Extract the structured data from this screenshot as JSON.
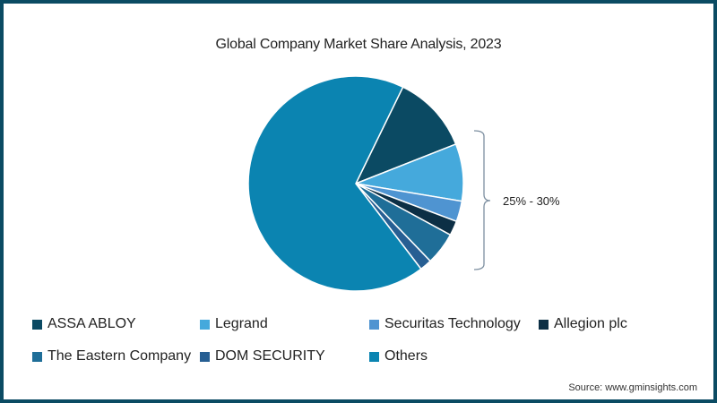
{
  "chart_data": {
    "type": "pie",
    "title": "Global Company Market Share Analysis, 2023",
    "categories": [
      "ASSA ABLOY",
      "Legrand",
      "Securitas Technology",
      "Allegion plc",
      "The Eastern Company",
      "DOM SECURITY",
      "Others"
    ],
    "values": [
      11.8,
      8.6,
      3.1,
      2.2,
      4.9,
      1.8,
      67.6
    ],
    "colors": [
      "#0b4a63",
      "#45a9dc",
      "#4f94d1",
      "#0c2f45",
      "#1f6e98",
      "#275f93",
      "#0b84b1"
    ],
    "annotation": "25% - 30%",
    "annotation_target": "combined share of top named companies",
    "legend_position": "bottom",
    "source": "Source: www.gminsights.com"
  },
  "title": "Global Company Market Share Analysis, 2023",
  "annotation": "25% - 30%",
  "legend": [
    {
      "label": "ASSA ABLOY",
      "color": "#0b4a63"
    },
    {
      "label": "Legrand",
      "color": "#45a9dc"
    },
    {
      "label": "Securitas Technology",
      "color": "#4f94d1"
    },
    {
      "label": "Allegion plc",
      "color": "#0c2f45"
    },
    {
      "label": "The Eastern Company",
      "color": "#1f6e98"
    },
    {
      "label": "DOM SECURITY",
      "color": "#275f93"
    },
    {
      "label": "Others",
      "color": "#0b84b1"
    }
  ],
  "source": "Source: www.gminsights.com"
}
